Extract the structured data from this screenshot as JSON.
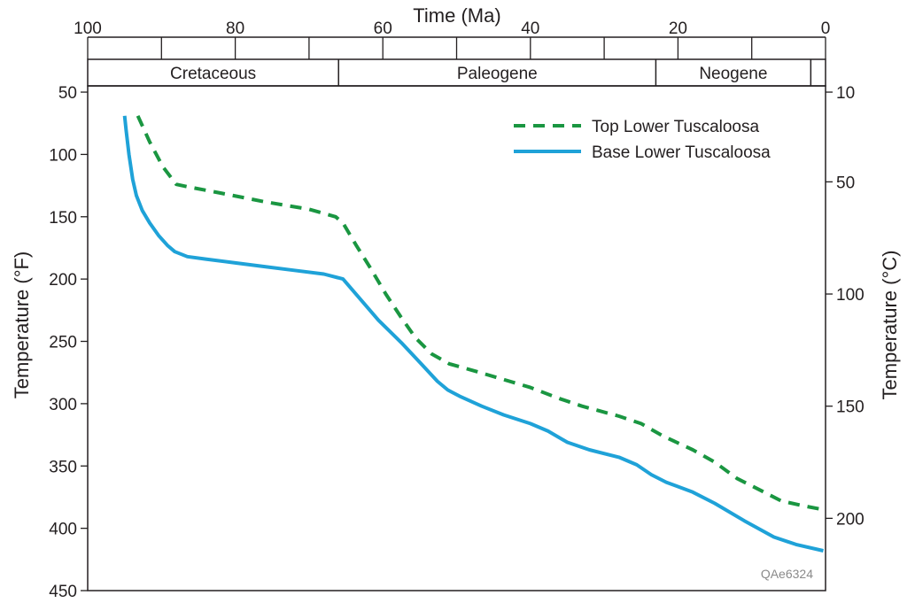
{
  "chart_data": {
    "type": "line",
    "title": "",
    "xlabel": "Time (Ma)",
    "ylabel": "Temperature (°F)",
    "y2label": "Temperature (°C)",
    "xlim": [
      100,
      0
    ],
    "ylim": [
      450,
      45
    ],
    "y2lim_c": [
      232.2,
      7.2
    ],
    "x_ticks": [
      100,
      80,
      60,
      40,
      20,
      0
    ],
    "y_ticks": [
      50,
      100,
      150,
      200,
      250,
      300,
      350,
      400,
      450
    ],
    "y2_ticks": [
      10,
      50,
      100,
      150,
      200
    ],
    "grid": false,
    "legend": "top-right",
    "periods": [
      {
        "name": "Cretaceous",
        "from": 100,
        "to": 66
      },
      {
        "name": "Paleogene",
        "from": 66,
        "to": 23
      },
      {
        "name": "Neogene",
        "from": 23,
        "to": 2
      },
      {
        "name": "",
        "from": 2,
        "to": 0
      }
    ],
    "series": [
      {
        "name": "Top Lower Tuscaloosa",
        "style": "dashed",
        "color": "#1a9641",
        "points": [
          [
            93.2,
            69
          ],
          [
            91.6,
            90
          ],
          [
            89.8,
            110
          ],
          [
            88.0,
            124
          ],
          [
            86.4,
            126
          ],
          [
            82.0,
            131
          ],
          [
            76.0,
            138
          ],
          [
            70.0,
            144
          ],
          [
            66.4,
            150
          ],
          [
            65.4,
            155
          ],
          [
            63.6,
            173
          ],
          [
            61.6,
            192
          ],
          [
            59.6,
            212
          ],
          [
            57.6,
            230
          ],
          [
            55.6,
            247
          ],
          [
            53.4,
            260
          ],
          [
            51.0,
            268
          ],
          [
            48.0,
            273
          ],
          [
            44.0,
            280
          ],
          [
            40.0,
            287
          ],
          [
            36.0,
            296
          ],
          [
            33.0,
            302
          ],
          [
            28.0,
            310
          ],
          [
            25.0,
            316
          ],
          [
            22.0,
            326
          ],
          [
            18.0,
            337
          ],
          [
            15.0,
            347
          ],
          [
            12.0,
            360
          ],
          [
            8.0,
            372
          ],
          [
            6.0,
            378
          ],
          [
            3.0,
            382
          ],
          [
            0.3,
            385
          ]
        ]
      },
      {
        "name": "Base Lower Tuscaloosa",
        "style": "solid",
        "color": "#1fa2d8",
        "points": [
          [
            95.0,
            69
          ],
          [
            94.8,
            80
          ],
          [
            94.4,
            100
          ],
          [
            93.9,
            120
          ],
          [
            93.4,
            133
          ],
          [
            92.6,
            145
          ],
          [
            91.6,
            155
          ],
          [
            90.4,
            165
          ],
          [
            89.2,
            173
          ],
          [
            88.2,
            178
          ],
          [
            86.5,
            182
          ],
          [
            84.0,
            184
          ],
          [
            80.0,
            187
          ],
          [
            76.0,
            190
          ],
          [
            72.0,
            193
          ],
          [
            68.0,
            196
          ],
          [
            65.4,
            200
          ],
          [
            63.5,
            213
          ],
          [
            60.6,
            233
          ],
          [
            57.5,
            251
          ],
          [
            54.8,
            268
          ],
          [
            52.6,
            282
          ],
          [
            51.2,
            289
          ],
          [
            49.6,
            294
          ],
          [
            46.6,
            302
          ],
          [
            43.6,
            309
          ],
          [
            40.0,
            316
          ],
          [
            37.6,
            322
          ],
          [
            35.0,
            331
          ],
          [
            32.0,
            337
          ],
          [
            28.0,
            343
          ],
          [
            25.6,
            349
          ],
          [
            23.6,
            357
          ],
          [
            21.6,
            363
          ],
          [
            18.0,
            371
          ],
          [
            15.0,
            380
          ],
          [
            11.0,
            394
          ],
          [
            7.0,
            407
          ],
          [
            4.0,
            413
          ],
          [
            0.3,
            418
          ]
        ]
      }
    ],
    "annotations": [
      "QAe6324"
    ]
  }
}
